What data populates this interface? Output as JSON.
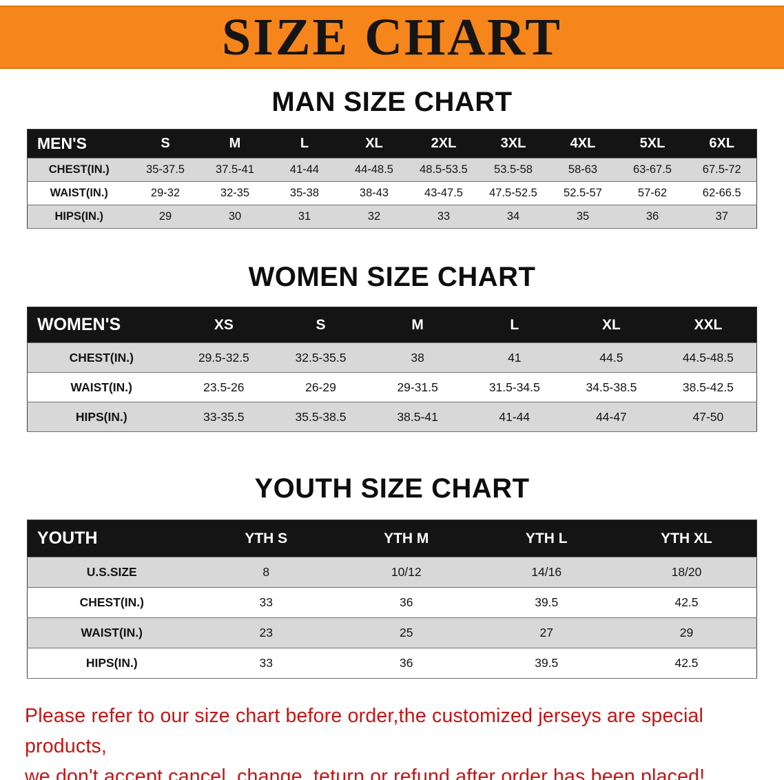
{
  "banner": {
    "title": "SIZE CHART",
    "bg_color": "#F6851B"
  },
  "men": {
    "heading": "MAN SIZE CHART",
    "header": [
      "MEN'S",
      "S",
      "M",
      "L",
      "XL",
      "2XL",
      "3XL",
      "4XL",
      "5XL",
      "6XL"
    ],
    "rows": [
      [
        "CHEST(IN.)",
        "35-37.5",
        "37.5-41",
        "41-44",
        "44-48.5",
        "48.5-53.5",
        "53.5-58",
        "58-63",
        "63-67.5",
        "67.5-72"
      ],
      [
        "WAIST(IN.)",
        "29-32",
        "32-35",
        "35-38",
        "38-43",
        "43-47.5",
        "47.5-52.5",
        "52.5-57",
        "57-62",
        "62-66.5"
      ],
      [
        "HIPS(IN.)",
        "29",
        "30",
        "31",
        "32",
        "33",
        "34",
        "35",
        "36",
        "37"
      ]
    ],
    "shading": [
      "shade",
      "plain",
      "shade"
    ]
  },
  "women": {
    "heading": "WOMEN SIZE CHART",
    "header": [
      "WOMEN'S",
      "XS",
      "S",
      "M",
      "L",
      "XL",
      "XXL"
    ],
    "rows": [
      [
        "CHEST(IN.)",
        "29.5-32.5",
        "32.5-35.5",
        "38",
        "41",
        "44.5",
        "44.5-48.5"
      ],
      [
        "WAIST(IN.)",
        "23.5-26",
        "26-29",
        "29-31.5",
        "31.5-34.5",
        "34.5-38.5",
        "38.5-42.5"
      ],
      [
        "HIPS(IN.)",
        "33-35.5",
        "35.5-38.5",
        "38.5-41",
        "41-44",
        "44-47",
        "47-50"
      ]
    ],
    "shading": [
      "shade",
      "plain",
      "shade"
    ]
  },
  "youth": {
    "heading": "YOUTH SIZE CHART",
    "header": [
      "YOUTH",
      "YTH S",
      "YTH M",
      "YTH L",
      "YTH XL"
    ],
    "rows": [
      [
        "U.S.SIZE",
        "8",
        "10/12",
        "14/16",
        "18/20"
      ],
      [
        "CHEST(IN.)",
        "33",
        "36",
        "39.5",
        "42.5"
      ],
      [
        "WAIST(IN.)",
        "23",
        "25",
        "27",
        "29"
      ],
      [
        "HIPS(IN.)",
        "33",
        "36",
        "39.5",
        "42.5"
      ]
    ],
    "shading": [
      "shade",
      "plain",
      "shade",
      "plain"
    ]
  },
  "footer": {
    "line1": "Please refer to our size chart before order,the customized jerseys are special products,",
    "line2": "we don't accept cancel, change, teturn or refund after order has been placed!"
  }
}
